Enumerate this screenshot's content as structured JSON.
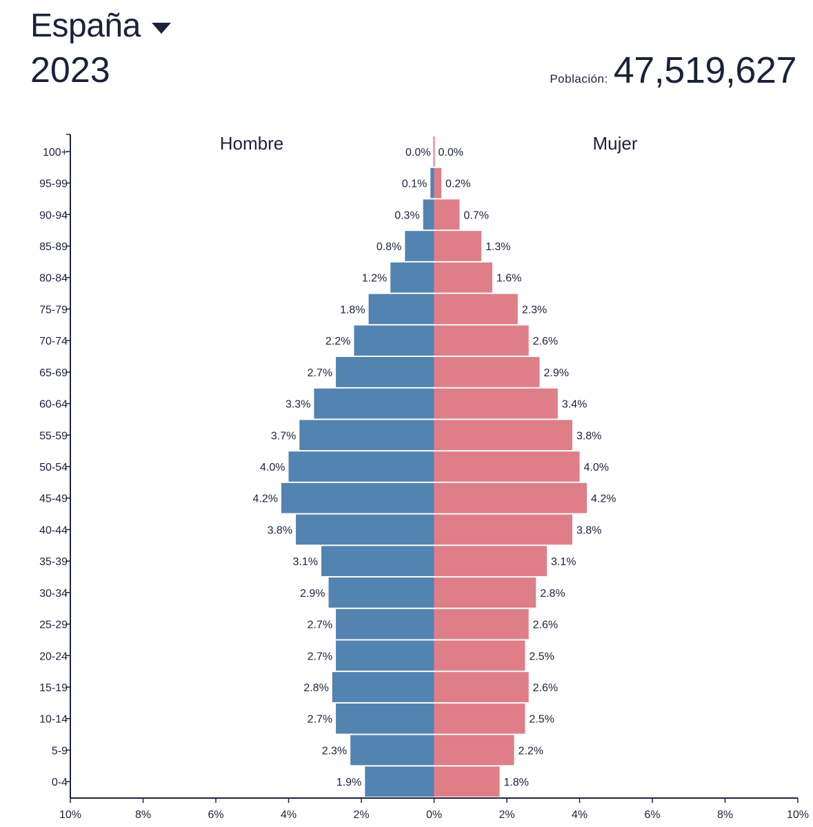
{
  "header": {
    "country": "España",
    "year": "2023",
    "population_label": "Población:",
    "population_value": "47,519,627"
  },
  "colors": {
    "male": "#5383b0",
    "female": "#e07e87",
    "axis": "#1b2238",
    "text": "#1b2238"
  },
  "chart_data": {
    "type": "bar",
    "orientation": "horizontal-population-pyramid",
    "categories": [
      "100+",
      "95-99",
      "90-94",
      "85-89",
      "80-84",
      "75-79",
      "70-74",
      "65-69",
      "60-64",
      "55-59",
      "50-54",
      "45-49",
      "40-44",
      "35-39",
      "30-34",
      "25-29",
      "20-24",
      "15-19",
      "10-14",
      "5-9",
      "0-4"
    ],
    "series": [
      {
        "name": "Hombre",
        "values": [
          0.0,
          0.1,
          0.3,
          0.8,
          1.2,
          1.8,
          2.2,
          2.7,
          3.3,
          3.7,
          4.0,
          4.2,
          3.8,
          3.1,
          2.9,
          2.7,
          2.7,
          2.8,
          2.7,
          2.3,
          1.9
        ],
        "labels": [
          "0.0%",
          "0.1%",
          "0.3%",
          "0.8%",
          "1.2%",
          "1.8%",
          "2.2%",
          "2.7%",
          "3.3%",
          "3.7%",
          "4.0%",
          "4.2%",
          "3.8%",
          "3.1%",
          "2.9%",
          "2.7%",
          "2.7%",
          "2.8%",
          "2.7%",
          "2.3%",
          "1.9%"
        ]
      },
      {
        "name": "Mujer",
        "values": [
          0.0,
          0.2,
          0.7,
          1.3,
          1.6,
          2.3,
          2.6,
          2.9,
          3.4,
          3.8,
          4.0,
          4.2,
          3.8,
          3.1,
          2.8,
          2.6,
          2.5,
          2.6,
          2.5,
          2.2,
          1.8
        ],
        "labels": [
          "0.0%",
          "0.2%",
          "0.7%",
          "1.3%",
          "1.6%",
          "2.3%",
          "2.6%",
          "2.9%",
          "3.4%",
          "3.8%",
          "4.0%",
          "4.2%",
          "3.8%",
          "3.1%",
          "2.8%",
          "2.6%",
          "2.5%",
          "2.6%",
          "2.5%",
          "2.2%",
          "1.8%"
        ]
      }
    ],
    "x_ticks": [
      "10%",
      "8%",
      "6%",
      "4%",
      "2%",
      "0%",
      "2%",
      "4%",
      "6%",
      "8%",
      "10%"
    ],
    "xlim": [
      -10,
      10
    ],
    "xlabel": "",
    "ylabel": "",
    "grid": false
  }
}
